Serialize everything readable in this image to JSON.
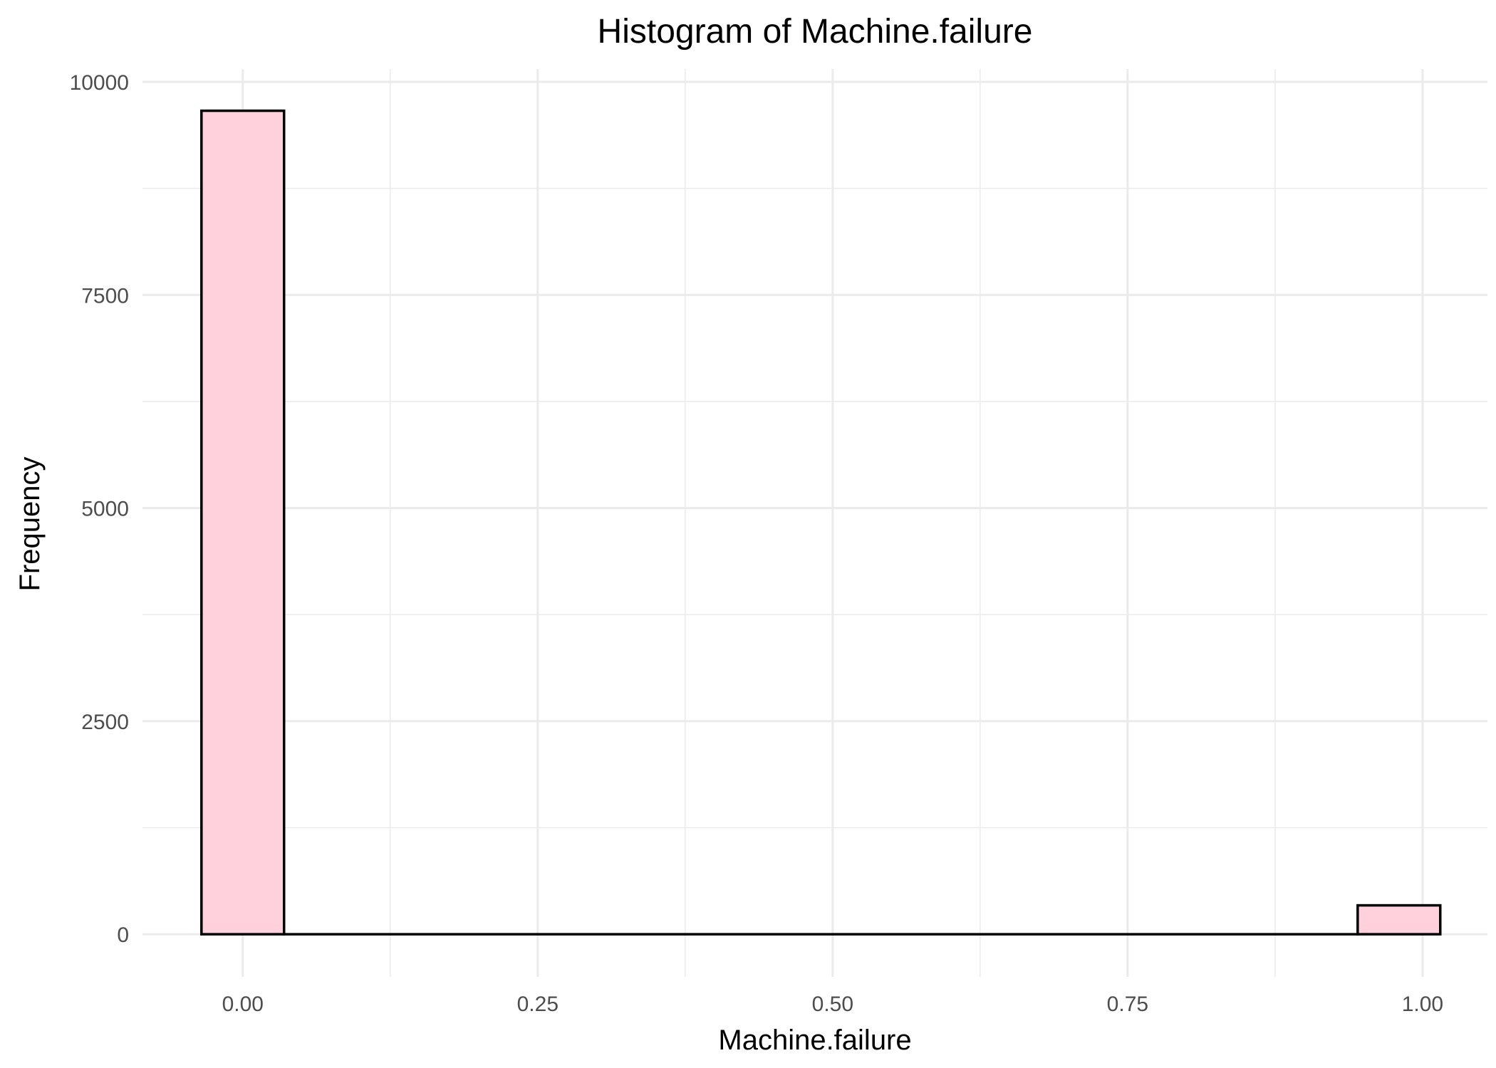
{
  "chart_data": {
    "type": "bar",
    "title": "Histogram of Machine.failure",
    "xlabel": "Machine.failure",
    "ylabel": "Frequency",
    "xlim": [
      -0.085,
      1.055
    ],
    "ylim": [
      -500,
      10150
    ],
    "x_ticks": [
      {
        "value": 0.0,
        "label": "0.00"
      },
      {
        "value": 0.25,
        "label": "0.25"
      },
      {
        "value": 0.5,
        "label": "0.50"
      },
      {
        "value": 0.75,
        "label": "0.75"
      },
      {
        "value": 1.0,
        "label": "1.00"
      }
    ],
    "y_ticks": [
      {
        "value": 0,
        "label": "0"
      },
      {
        "value": 2500,
        "label": "2500"
      },
      {
        "value": 5000,
        "label": "5000"
      },
      {
        "value": 7500,
        "label": "7500"
      },
      {
        "value": 10000,
        "label": "10000"
      }
    ],
    "bins": [
      {
        "x0": -0.035,
        "x1": 0.035,
        "value": 9661
      },
      {
        "x0": 0.035,
        "x1": 0.945,
        "value": 0
      },
      {
        "x0": 0.945,
        "x1": 1.015,
        "value": 339
      }
    ],
    "grid": true,
    "legend": "none",
    "colors": {
      "fill": "#ffd1dc",
      "stroke": "#000000",
      "grid": "#ebebeb"
    }
  }
}
